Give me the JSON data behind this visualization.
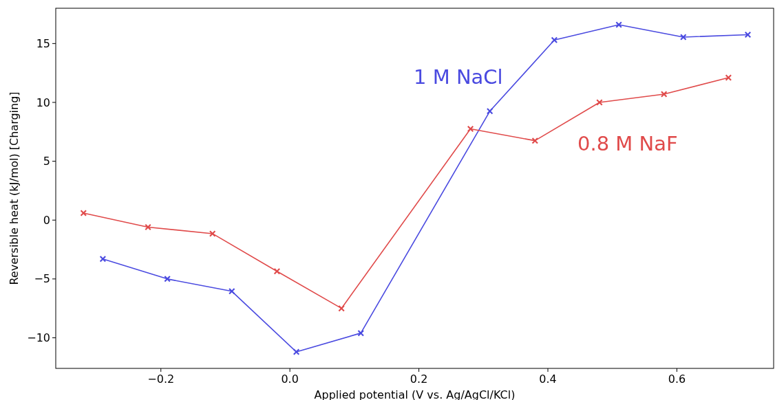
{
  "chart_data": {
    "type": "line",
    "xlabel": "Applied potential (V vs. Ag/AgCl/KCl)",
    "ylabel": "Reversible heat (kJ/mol) [Charging]",
    "xlim": [
      -0.363,
      0.75
    ],
    "ylim": [
      -12.6,
      18
    ],
    "xticks": [
      {
        "value": -0.2,
        "label": "−0.2"
      },
      {
        "value": 0,
        "label": "0.0"
      },
      {
        "value": 0.2,
        "label": "0.2"
      },
      {
        "value": 0.4,
        "label": "0.4"
      },
      {
        "value": 0.6,
        "label": "0.6"
      }
    ],
    "yticks": [
      {
        "value": -10,
        "label": "−10"
      },
      {
        "value": -5,
        "label": "−5"
      },
      0,
      5,
      10,
      15
    ],
    "marker": "cross",
    "line_style": "solid",
    "grid": false,
    "series": [
      {
        "name": "1 M NaCl",
        "color": "#4a4ae0",
        "x": [
          -0.29,
          -0.19,
          -0.09,
          0.01,
          0.11,
          0.31,
          0.41,
          0.51,
          0.61,
          0.71
        ],
        "values": [
          -3.3,
          -5.0,
          -6.05,
          -11.2,
          -9.6,
          9.25,
          15.3,
          16.6,
          15.55,
          15.75
        ]
      },
      {
        "name": "0.8 M NaF",
        "color": "#e04a4a",
        "x": [
          -0.32,
          -0.22,
          -0.12,
          -0.02,
          0.08,
          0.28,
          0.38,
          0.48,
          0.58,
          0.68
        ],
        "values": [
          0.6,
          -0.6,
          -1.15,
          -4.35,
          -7.5,
          7.75,
          6.75,
          10.0,
          10.7,
          12.1
        ]
      }
    ]
  }
}
